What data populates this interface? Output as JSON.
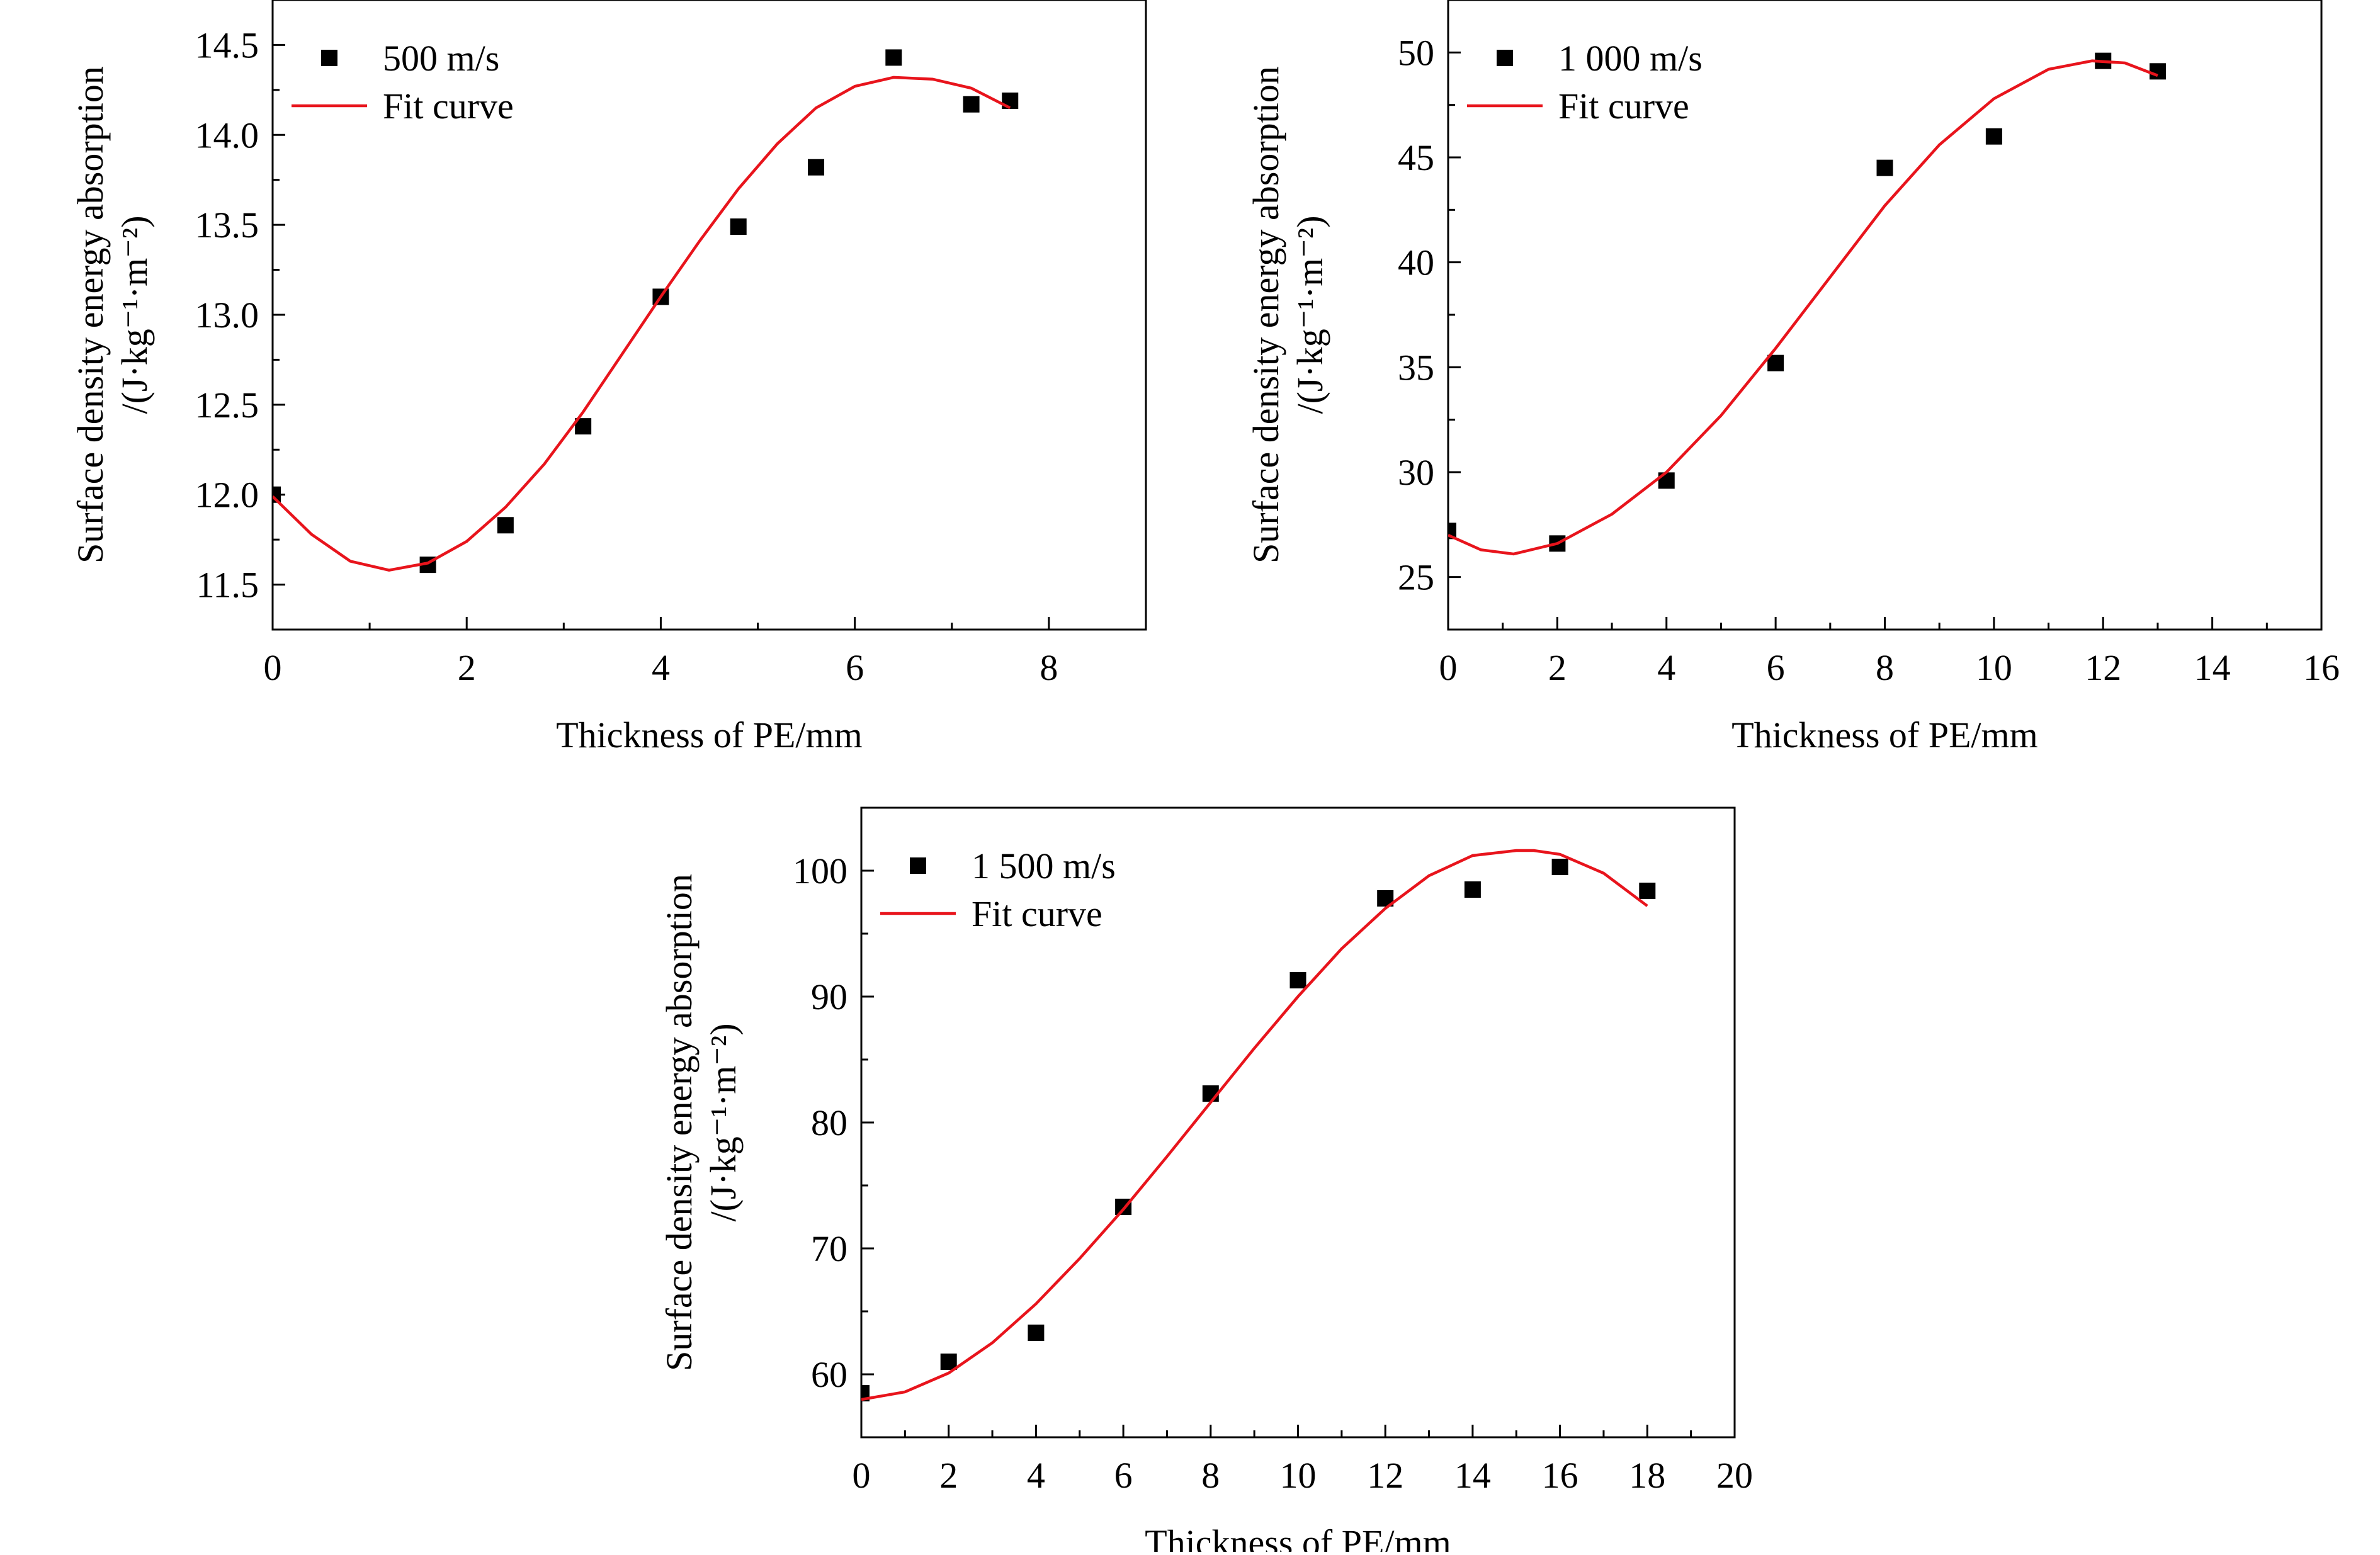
{
  "chart_data": [
    {
      "type": "scatter",
      "xlabel": "Thickness of PE/mm",
      "ylabel_line1": "Surface density energy absorption",
      "ylabel_line2": "/(J·kg⁻¹·m⁻²)",
      "xlim": [
        0,
        9
      ],
      "ylim": [
        11.25,
        14.75
      ],
      "xticks": [
        0,
        2,
        4,
        6,
        8
      ],
      "yticks": [
        11.5,
        12.0,
        12.5,
        13.0,
        13.5,
        14.0,
        14.5
      ],
      "y_decimals": 1,
      "legend_position": "top-left",
      "series": [
        {
          "name": "500 m/s",
          "kind": "points",
          "x": [
            0,
            1.6,
            2.4,
            3.2,
            4.0,
            4.8,
            5.6,
            6.4,
            7.2,
            7.6
          ],
          "y": [
            12.0,
            11.61,
            11.83,
            12.38,
            13.1,
            13.49,
            13.82,
            14.43,
            14.17,
            14.19
          ]
        },
        {
          "name": "Fit curve",
          "kind": "line",
          "color": "#e8141c",
          "x": [
            0,
            0.4,
            0.8,
            1.2,
            1.6,
            2.0,
            2.4,
            2.8,
            3.2,
            3.6,
            4.0,
            4.4,
            4.8,
            5.2,
            5.6,
            6.0,
            6.4,
            6.8,
            7.2,
            7.6
          ],
          "y": [
            11.99,
            11.78,
            11.63,
            11.58,
            11.62,
            11.74,
            11.93,
            12.17,
            12.46,
            12.78,
            13.1,
            13.41,
            13.7,
            13.95,
            14.15,
            14.27,
            14.32,
            14.31,
            14.26,
            14.15
          ]
        }
      ]
    },
    {
      "type": "scatter",
      "xlabel": "Thickness of PE/mm",
      "ylabel_line1": "Surface density energy absorption",
      "ylabel_line2": "/(J·kg⁻¹·m⁻²)",
      "xlim": [
        0,
        16
      ],
      "ylim": [
        22.5,
        52.5
      ],
      "xticks": [
        0,
        2,
        4,
        6,
        8,
        10,
        12,
        14,
        16
      ],
      "yticks": [
        25,
        30,
        35,
        40,
        45,
        50
      ],
      "y_decimals": 0,
      "legend_position": "top-left",
      "series": [
        {
          "name": "1 000 m/s",
          "kind": "points",
          "x": [
            0,
            2,
            4,
            6,
            8,
            10,
            12,
            13
          ],
          "y": [
            27.2,
            26.6,
            29.6,
            35.2,
            44.5,
            46.0,
            49.6,
            49.1
          ]
        },
        {
          "name": "Fit curve",
          "kind": "line",
          "color": "#e8141c",
          "x": [
            0,
            0.6,
            1.2,
            2,
            3,
            4,
            5,
            6,
            7,
            8,
            9,
            10,
            11,
            11.8,
            12.4,
            13
          ],
          "y": [
            27.0,
            26.3,
            26.1,
            26.6,
            28.0,
            30.0,
            32.7,
            35.9,
            39.3,
            42.7,
            45.6,
            47.8,
            49.2,
            49.6,
            49.5,
            48.9
          ]
        }
      ]
    },
    {
      "type": "scatter",
      "xlabel": "Thickness of PE/mm",
      "ylabel_line1": "Surface density energy absorption",
      "ylabel_line2": "/(J·kg⁻¹·m⁻²)",
      "xlim": [
        0,
        20
      ],
      "ylim": [
        55,
        105
      ],
      "xticks": [
        0,
        2,
        4,
        6,
        8,
        10,
        12,
        14,
        16,
        18,
        20
      ],
      "yticks": [
        60,
        70,
        80,
        90,
        100
      ],
      "y_decimals": 0,
      "legend_position": "top-left",
      "series": [
        {
          "name": "1 500 m/s",
          "kind": "points",
          "x": [
            0,
            2,
            4,
            6,
            8,
            10,
            12,
            14,
            16,
            18
          ],
          "y": [
            58.5,
            61.0,
            63.3,
            73.3,
            82.3,
            91.3,
            97.8,
            98.5,
            100.3,
            98.4
          ]
        },
        {
          "name": "Fit curve",
          "kind": "line",
          "color": "#e8141c",
          "x": [
            0,
            1,
            2,
            3,
            4,
            5,
            6,
            7,
            8,
            9,
            10,
            11,
            12,
            13,
            14,
            15,
            15.4,
            16,
            17,
            18
          ],
          "y": [
            58.0,
            58.6,
            60.1,
            62.5,
            65.6,
            69.2,
            73.1,
            77.3,
            81.6,
            85.9,
            90.0,
            93.8,
            97.0,
            99.6,
            101.2,
            101.6,
            101.6,
            101.3,
            99.8,
            97.2
          ]
        }
      ]
    }
  ]
}
